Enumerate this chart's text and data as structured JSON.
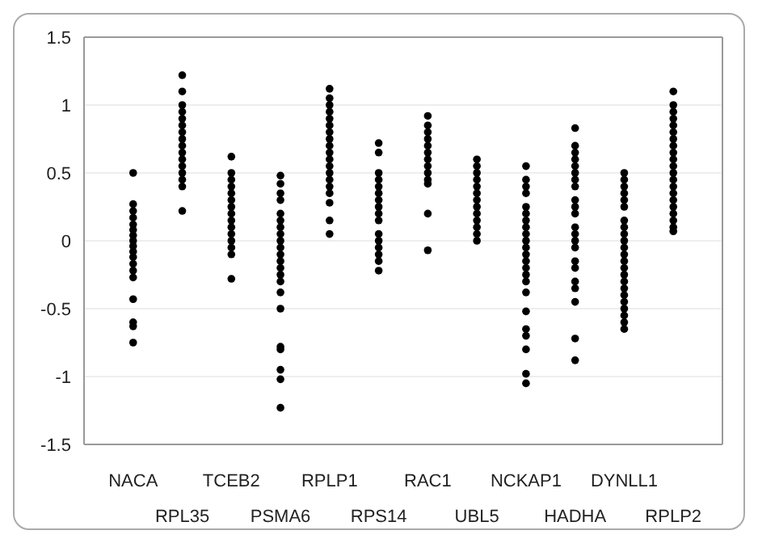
{
  "chart_data": {
    "type": "scatter",
    "categories": [
      "NACA",
      "RPL35",
      "TCEB2",
      "PSMA6",
      "RPLP1",
      "RPS14",
      "RAC1",
      "UBL5",
      "NCKAP1",
      "HADHA",
      "DYNLL1",
      "RPLP2"
    ],
    "series": [
      {
        "color": "#000000",
        "x": [
          "NACA",
          "NACA",
          "NACA",
          "NACA",
          "NACA",
          "NACA",
          "NACA",
          "NACA",
          "NACA",
          "NACA",
          "NACA",
          "NACA",
          "NACA",
          "NACA",
          "NACA",
          "NACA",
          "NACA",
          "NACA",
          "RPL35",
          "RPL35",
          "RPL35",
          "RPL35",
          "RPL35",
          "RPL35",
          "RPL35",
          "RPL35",
          "RPL35",
          "RPL35",
          "RPL35",
          "RPL35",
          "RPL35",
          "RPL35",
          "RPL35",
          "RPL35",
          "TCEB2",
          "TCEB2",
          "TCEB2",
          "TCEB2",
          "TCEB2",
          "TCEB2",
          "TCEB2",
          "TCEB2",
          "TCEB2",
          "TCEB2",
          "TCEB2",
          "TCEB2",
          "TCEB2",
          "TCEB2",
          "TCEB2",
          "PSMA6",
          "PSMA6",
          "PSMA6",
          "PSMA6",
          "PSMA6",
          "PSMA6",
          "PSMA6",
          "PSMA6",
          "PSMA6",
          "PSMA6",
          "PSMA6",
          "PSMA6",
          "PSMA6",
          "PSMA6",
          "PSMA6",
          "PSMA6",
          "PSMA6",
          "PSMA6",
          "PSMA6",
          "PSMA6",
          "PSMA6",
          "PSMA6",
          "RPLP1",
          "RPLP1",
          "RPLP1",
          "RPLP1",
          "RPLP1",
          "RPLP1",
          "RPLP1",
          "RPLP1",
          "RPLP1",
          "RPLP1",
          "RPLP1",
          "RPLP1",
          "RPLP1",
          "RPLP1",
          "RPLP1",
          "RPLP1",
          "RPLP1",
          "RPLP1",
          "RPLP1",
          "RPS14",
          "RPS14",
          "RPS14",
          "RPS14",
          "RPS14",
          "RPS14",
          "RPS14",
          "RPS14",
          "RPS14",
          "RPS14",
          "RPS14",
          "RPS14",
          "RPS14",
          "RPS14",
          "RPS14",
          "RPS14",
          "RAC1",
          "RAC1",
          "RAC1",
          "RAC1",
          "RAC1",
          "RAC1",
          "RAC1",
          "RAC1",
          "RAC1",
          "RAC1",
          "RAC1",
          "RAC1",
          "RAC1",
          "UBL5",
          "UBL5",
          "UBL5",
          "UBL5",
          "UBL5",
          "UBL5",
          "UBL5",
          "UBL5",
          "UBL5",
          "UBL5",
          "UBL5",
          "UBL5",
          "UBL5",
          "NCKAP1",
          "NCKAP1",
          "NCKAP1",
          "NCKAP1",
          "NCKAP1",
          "NCKAP1",
          "NCKAP1",
          "NCKAP1",
          "NCKAP1",
          "NCKAP1",
          "NCKAP1",
          "NCKAP1",
          "NCKAP1",
          "NCKAP1",
          "NCKAP1",
          "NCKAP1",
          "NCKAP1",
          "NCKAP1",
          "NCKAP1",
          "NCKAP1",
          "NCKAP1",
          "NCKAP1",
          "NCKAP1",
          "HADHA",
          "HADHA",
          "HADHA",
          "HADHA",
          "HADHA",
          "HADHA",
          "HADHA",
          "HADHA",
          "HADHA",
          "HADHA",
          "HADHA",
          "HADHA",
          "HADHA",
          "HADHA",
          "HADHA",
          "HADHA",
          "HADHA",
          "HADHA",
          "HADHA",
          "HADHA",
          "HADHA",
          "HADHA",
          "DYNLL1",
          "DYNLL1",
          "DYNLL1",
          "DYNLL1",
          "DYNLL1",
          "DYNLL1",
          "DYNLL1",
          "DYNLL1",
          "DYNLL1",
          "DYNLL1",
          "DYNLL1",
          "DYNLL1",
          "DYNLL1",
          "DYNLL1",
          "DYNLL1",
          "DYNLL1",
          "DYNLL1",
          "DYNLL1",
          "DYNLL1",
          "DYNLL1",
          "DYNLL1",
          "DYNLL1",
          "DYNLL1",
          "RPLP2",
          "RPLP2",
          "RPLP2",
          "RPLP2",
          "RPLP2",
          "RPLP2",
          "RPLP2",
          "RPLP2",
          "RPLP2",
          "RPLP2",
          "RPLP2",
          "RPLP2",
          "RPLP2",
          "RPLP2",
          "RPLP2",
          "RPLP2",
          "RPLP2",
          "RPLP2",
          "RPLP2",
          "RPLP2",
          "RPLP2"
        ],
        "values": [
          0.5,
          0.27,
          0.22,
          0.17,
          0.12,
          0.08,
          0.04,
          0,
          -0.04,
          -0.08,
          -0.12,
          -0.17,
          -0.22,
          -0.27,
          -0.43,
          -0.6,
          -0.63,
          -0.75,
          1.22,
          1.1,
          1.0,
          0.95,
          0.9,
          0.85,
          0.8,
          0.75,
          0.7,
          0.65,
          0.6,
          0.55,
          0.5,
          0.45,
          0.4,
          0.22,
          0.62,
          0.5,
          0.45,
          0.4,
          0.35,
          0.3,
          0.25,
          0.2,
          0.15,
          0.1,
          0.05,
          0,
          -0.05,
          -0.1,
          -0.28,
          0.48,
          0.42,
          0.35,
          0.3,
          0.2,
          0.15,
          0.1,
          0.05,
          0,
          -0.05,
          -0.1,
          -0.15,
          -0.2,
          -0.25,
          -0.3,
          -0.38,
          -0.5,
          -0.78,
          -0.8,
          -0.95,
          -1.02,
          -1.23,
          1.12,
          1.05,
          1.0,
          0.95,
          0.9,
          0.85,
          0.8,
          0.75,
          0.7,
          0.65,
          0.6,
          0.55,
          0.5,
          0.45,
          0.4,
          0.35,
          0.28,
          0.15,
          0.05,
          0.72,
          0.65,
          0.5,
          0.45,
          0.4,
          0.35,
          0.3,
          0.25,
          0.2,
          0.15,
          0.05,
          0,
          -0.05,
          -0.1,
          -0.15,
          -0.22,
          0.92,
          0.85,
          0.8,
          0.75,
          0.7,
          0.65,
          0.6,
          0.55,
          0.5,
          0.45,
          0.42,
          0.2,
          -0.07,
          0.6,
          0.55,
          0.5,
          0.45,
          0.4,
          0.35,
          0.3,
          0.25,
          0.2,
          0.15,
          0.1,
          0.05,
          0,
          0.55,
          0.45,
          0.4,
          0.35,
          0.25,
          0.2,
          0.15,
          0.1,
          0.05,
          0,
          -0.05,
          -0.1,
          -0.15,
          -0.2,
          -0.25,
          -0.3,
          -0.38,
          -0.52,
          -0.65,
          -0.7,
          -0.8,
          -0.98,
          -1.05,
          0.83,
          0.7,
          0.65,
          0.6,
          0.55,
          0.5,
          0.45,
          0.4,
          0.3,
          0.25,
          0.2,
          0.1,
          0.05,
          0,
          -0.05,
          -0.15,
          -0.2,
          -0.3,
          -0.35,
          -0.45,
          -0.72,
          -0.88,
          0.5,
          0.45,
          0.4,
          0.35,
          0.3,
          0.25,
          0.15,
          0.1,
          0.05,
          0,
          -0.05,
          -0.1,
          -0.15,
          -0.2,
          -0.25,
          -0.3,
          -0.35,
          -0.4,
          -0.45,
          -0.5,
          -0.55,
          -0.6,
          -0.65,
          1.1,
          1.0,
          0.95,
          0.9,
          0.85,
          0.8,
          0.75,
          0.7,
          0.65,
          0.6,
          0.55,
          0.5,
          0.45,
          0.4,
          0.35,
          0.3,
          0.25,
          0.2,
          0.15,
          0.1,
          0.07
        ]
      }
    ],
    "ylim": [
      -1.5,
      1.5
    ],
    "yticks": [
      -1.5,
      -1,
      -0.5,
      0,
      0.5,
      1,
      1.5
    ],
    "grid": "y",
    "marker": "circle"
  }
}
